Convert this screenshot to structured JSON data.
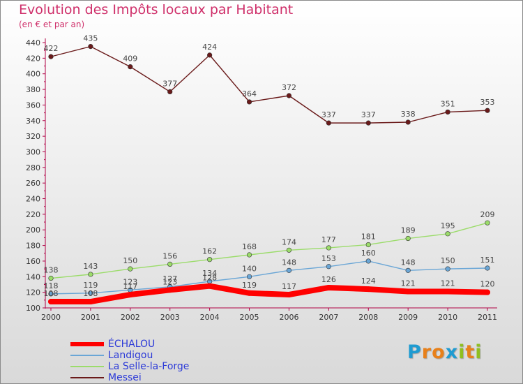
{
  "header": {
    "title": "Evolution des Impôts locaux par Habitant",
    "subtitle": "(en € et par an)"
  },
  "logo": {
    "letters": [
      "P",
      "r",
      "o",
      "x",
      "i",
      "t",
      "i"
    ]
  },
  "colors": {
    "title": "#cf2f6a",
    "axis": "#b00044",
    "legend_text": "#2d3bd8",
    "logo_letters": [
      "#1f9bd1",
      "#e8801a",
      "#e8801a",
      "#1f9bd1",
      "#8fbf1f",
      "#e8801a",
      "#8fbf1f"
    ]
  },
  "chart_data": {
    "type": "line",
    "x": [
      "2000",
      "2001",
      "2002",
      "2003",
      "2004",
      "2005",
      "2006",
      "2007",
      "2008",
      "2009",
      "2010",
      "2011"
    ],
    "ylim": [
      100,
      440
    ],
    "yticks": [
      100,
      120,
      140,
      160,
      180,
      200,
      220,
      240,
      260,
      280,
      300,
      320,
      340,
      360,
      380,
      400,
      420,
      440
    ],
    "grid": false,
    "legend_position": "bottom-left",
    "series": [
      {
        "name": "Messei",
        "color": "#6a1a1a",
        "values": [
          422,
          435,
          409,
          377,
          424,
          364,
          372,
          337,
          337,
          338,
          351,
          353
        ]
      },
      {
        "name": "La Selle-la-Forge",
        "color": "#9bdc6a",
        "values": [
          138,
          143,
          150,
          156,
          162,
          168,
          174,
          177,
          181,
          189,
          195,
          209
        ]
      },
      {
        "name": "Landigou",
        "color": "#6aa6d6",
        "values": [
          118,
          119,
          123,
          127,
          134,
          140,
          148,
          153,
          160,
          148,
          150,
          151
        ]
      },
      {
        "name": "ÉCHALOU",
        "color": "#ff0000",
        "values": [
          108,
          108,
          117,
          123,
          128,
          119,
          117,
          126,
          124,
          121,
          121,
          120
        ]
      }
    ],
    "legend_order": [
      "ÉCHALOU",
      "Landigou",
      "La Selle-la-Forge",
      "Messei"
    ]
  }
}
